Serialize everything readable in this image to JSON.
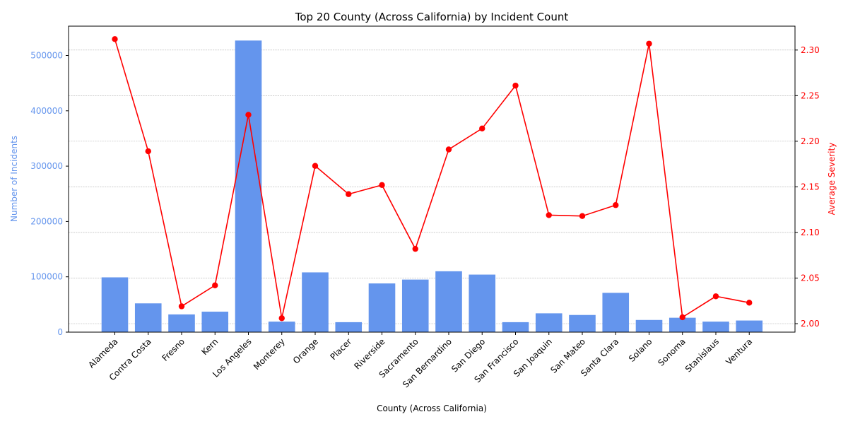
{
  "chart_data": {
    "type": "bar+line",
    "title": "Top 20 County (Across California) by Incident Count",
    "xlabel": "County (Across California)",
    "ylabel_left": "Number of Incidents",
    "ylabel_right": "Average Severity",
    "categories": [
      "Alameda",
      "Contra Costa",
      "Fresno",
      "Kern",
      "Los Angeles",
      "Monterey",
      "Orange",
      "Placer",
      "Riverside",
      "Sacramento",
      "San Bernardino",
      "San Diego",
      "San Francisco",
      "San Joaquin",
      "San Mateo",
      "Santa Clara",
      "Solano",
      "Sonoma",
      "Stanislaus",
      "Ventura"
    ],
    "series": [
      {
        "name": "Number of Incidents",
        "axis": "left",
        "kind": "bar",
        "color": "#6495ED",
        "values": [
          99000,
          52000,
          32000,
          37000,
          527000,
          19000,
          108000,
          18000,
          88000,
          95000,
          110000,
          104000,
          18000,
          34000,
          31000,
          71000,
          22000,
          26000,
          19000,
          21000
        ]
      },
      {
        "name": "Average Severity",
        "axis": "right",
        "kind": "line",
        "color": "#FF0000",
        "values": [
          2.312,
          2.189,
          2.019,
          2.042,
          2.229,
          2.006,
          2.173,
          2.142,
          2.152,
          2.082,
          2.191,
          2.214,
          2.261,
          2.119,
          2.118,
          2.13,
          2.307,
          2.007,
          2.03,
          2.023
        ]
      }
    ],
    "ylim_left": [
      0,
      553000
    ],
    "yticks_left": [
      "0",
      "100000",
      "200000",
      "300000",
      "400000",
      "500000"
    ],
    "yticks_left_values": [
      0,
      100000,
      200000,
      300000,
      400000,
      500000
    ],
    "ylim_right": [
      1.9907,
      2.3262
    ],
    "yticks_right": [
      "2.00",
      "2.05",
      "2.10",
      "2.15",
      "2.20",
      "2.25",
      "2.30"
    ],
    "yticks_right_values": [
      2.0,
      2.05,
      2.1,
      2.15,
      2.2,
      2.25,
      2.3
    ],
    "grid": "horizontal, right axis",
    "colors": {
      "left_axis": "#6495ED",
      "right_axis": "#FF0000"
    }
  }
}
